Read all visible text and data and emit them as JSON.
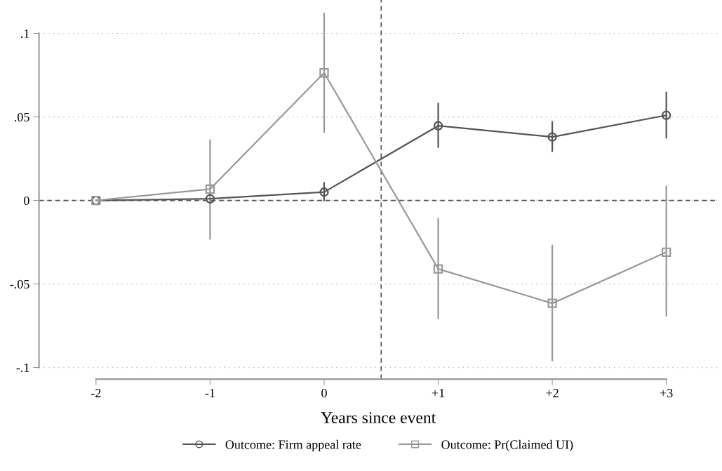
{
  "chart_data": {
    "type": "line",
    "xlabel": "Years since event",
    "x": [
      -2,
      -1,
      0,
      1,
      2,
      3
    ],
    "xlim": [
      -2.5,
      3.45
    ],
    "xticks": [
      -2,
      -1,
      0,
      {
        "value": 1,
        "label": "+1"
      },
      {
        "value": 2,
        "label": "+2"
      },
      {
        "value": 3,
        "label": "+3"
      }
    ],
    "ylim": [
      -0.107,
      0.12
    ],
    "yticks": [
      {
        "value": -0.1,
        "label": "-.1"
      },
      {
        "value": -0.05,
        "label": "-.05"
      },
      0,
      {
        "value": 0.05,
        "label": ".05"
      },
      {
        "value": 0.1,
        "label": ".1"
      }
    ],
    "series": [
      {
        "name": "Outcome: Firm appeal rate",
        "color": "#555555",
        "marker": "circle",
        "values": [
          0,
          0.001,
          0.005,
          0.0447,
          0.038,
          0.051
        ],
        "errors": [
          null,
          null,
          [
            0,
            0.0105
          ],
          [
            0.032,
            0.058
          ],
          [
            0.0295,
            0.047
          ],
          [
            0.0376,
            0.0646
          ]
        ]
      },
      {
        "name": "Outcome: Pr(Claimed UI)",
        "color": "#999999",
        "marker": "square",
        "values": [
          0,
          0.0068,
          0.0764,
          -0.041,
          -0.0616,
          -0.031
        ],
        "errors": [
          null,
          [
            -0.023,
            0.036
          ],
          [
            0.041,
            0.112
          ],
          [
            -0.0705,
            -0.011
          ],
          [
            -0.0958,
            -0.027
          ],
          [
            -0.069,
            0.0084
          ]
        ]
      }
    ],
    "ref_lines": [
      {
        "axis": "y",
        "value": 0,
        "color": "#555555",
        "line_style": "dashed"
      },
      {
        "axis": "x",
        "value": 0.5,
        "color": "#555555",
        "line_style": "dashed"
      }
    ],
    "grid": "y",
    "legend": "bottom",
    "line_style": "solid"
  }
}
